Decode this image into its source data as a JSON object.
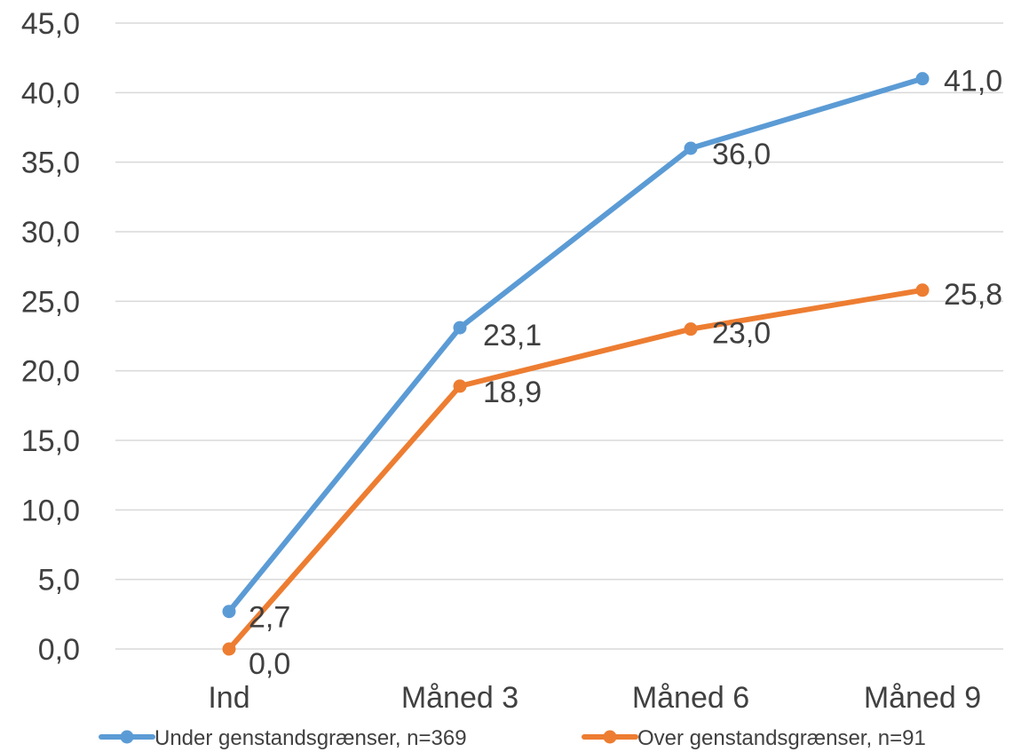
{
  "chart_data": {
    "type": "line",
    "title": "",
    "xlabel": "",
    "ylabel": "",
    "categories": [
      "Ind",
      "Måned 3",
      "Måned 6",
      "Måned 9"
    ],
    "ylim": [
      0,
      45
    ],
    "ytick_step": 5,
    "ytick_labels": [
      "0,0",
      "5,0",
      "10,0",
      "15,0",
      "20,0",
      "25,0",
      "30,0",
      "35,0",
      "40,0",
      "45,0"
    ],
    "grid": true,
    "legend_position": "bottom",
    "series": [
      {
        "name": "Under genstandsgrænser, n=369",
        "color": "#5b9bd5",
        "values": [
          2.7,
          23.1,
          36.0,
          41.0
        ],
        "labels": [
          "2,7",
          "23,1",
          "36,0",
          "41,0"
        ]
      },
      {
        "name": "Over genstandsgrænser, n=91",
        "color": "#ed7d31",
        "values": [
          0.0,
          18.9,
          23.0,
          25.8
        ],
        "labels": [
          "0,0",
          "18,9",
          "23,0",
          "25,8"
        ]
      }
    ]
  }
}
